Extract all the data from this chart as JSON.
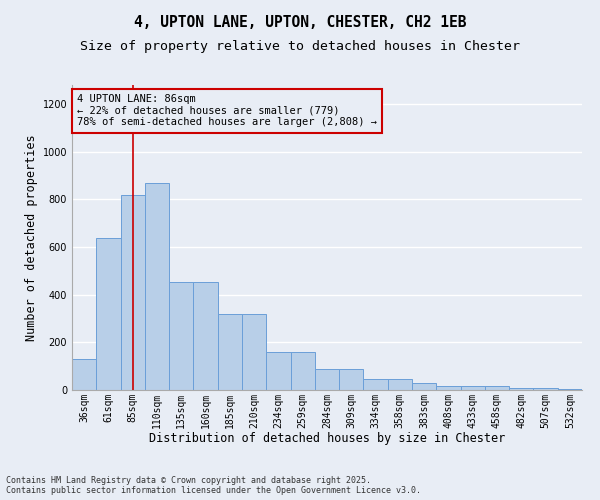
{
  "title": "4, UPTON LANE, UPTON, CHESTER, CH2 1EB",
  "subtitle": "Size of property relative to detached houses in Chester",
  "xlabel": "Distribution of detached houses by size in Chester",
  "ylabel": "Number of detached properties",
  "categories": [
    "36sqm",
    "61sqm",
    "85sqm",
    "110sqm",
    "135sqm",
    "160sqm",
    "185sqm",
    "210sqm",
    "234sqm",
    "259sqm",
    "284sqm",
    "309sqm",
    "334sqm",
    "358sqm",
    "383sqm",
    "408sqm",
    "433sqm",
    "458sqm",
    "482sqm",
    "507sqm",
    "532sqm"
  ],
  "values": [
    130,
    640,
    820,
    870,
    455,
    455,
    320,
    320,
    160,
    160,
    90,
    90,
    45,
    45,
    30,
    15,
    15,
    15,
    7,
    7,
    3
  ],
  "bar_color": "#b8cfe8",
  "bar_edge_color": "#6a9fd8",
  "bg_color": "#e8edf5",
  "grid_color": "#ffffff",
  "vline_x": 2,
  "vline_color": "#cc0000",
  "annotation_line1": "4 UPTON LANE: 86sqm",
  "annotation_line2": "← 22% of detached houses are smaller (779)",
  "annotation_line3": "78% of semi-detached houses are larger (2,808) →",
  "annotation_box_color": "#cc0000",
  "footer_line1": "Contains HM Land Registry data © Crown copyright and database right 2025.",
  "footer_line2": "Contains public sector information licensed under the Open Government Licence v3.0.",
  "ylim": [
    0,
    1280
  ],
  "yticks": [
    0,
    200,
    400,
    600,
    800,
    1000,
    1200
  ],
  "title_fontsize": 10.5,
  "subtitle_fontsize": 9.5,
  "axis_label_fontsize": 8.5,
  "tick_fontsize": 7,
  "annotation_fontsize": 7.5,
  "footer_fontsize": 6
}
